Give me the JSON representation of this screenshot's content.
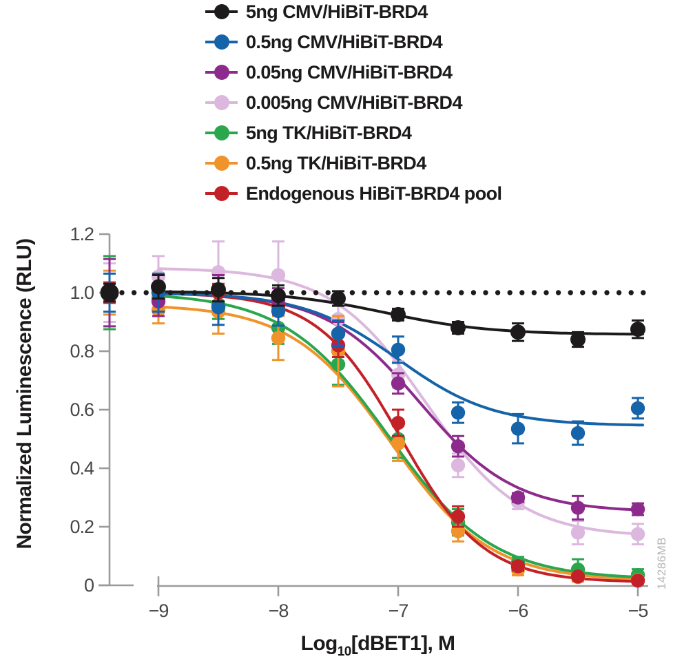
{
  "figure": {
    "watermark": "14286MB",
    "colors": {
      "axis": "#9b9b9b",
      "tick_label": "#474747",
      "reference_line": "#1c1a1b",
      "background": "#ffffff"
    }
  },
  "chart_data": {
    "type": "scatter",
    "title": "",
    "xlabel": "Log10[dBET1], M",
    "xlabel_parts": {
      "prefix": "Log",
      "sub": "10",
      "suffix": "[dBET1], M"
    },
    "ylabel": "Normalized Luminescence (RLU)",
    "legend_position": "top",
    "grid": false,
    "xlim": [
      -9,
      -5
    ],
    "ylim": [
      0,
      1.2
    ],
    "x_ticks": [
      -9,
      -8,
      -7,
      -6,
      -5
    ],
    "x_tick_labels": [
      "−9",
      "−8",
      "−7",
      "−6",
      "−5"
    ],
    "y_ticks": [
      0,
      0.2,
      0.4,
      0.6,
      0.8,
      1.0,
      1.2
    ],
    "y_tick_labels": [
      "0",
      "0.2",
      "0.4",
      "0.6",
      "0.8",
      "1.0",
      "1.2"
    ],
    "reference_line_y": 1.0,
    "x": [
      -9,
      -8.5,
      -8,
      -7.5,
      -7,
      -6.5,
      -6,
      -5.5,
      -5
    ],
    "series": [
      {
        "name": "5ng CMV/HiBiT-BRD4",
        "color": "#1c1a1b",
        "values": [
          1.02,
          1.01,
          0.99,
          0.98,
          0.925,
          0.88,
          0.865,
          0.84,
          0.875
        ],
        "errors": [
          0.04,
          0.04,
          0.035,
          0.025,
          0.02,
          0.02,
          0.03,
          0.025,
          0.03
        ],
        "control": {
          "value": 1.0,
          "error": 0.03
        },
        "fit": {
          "top": 1.005,
          "bottom": 0.857,
          "logIC50": -7.1,
          "hill": 1.0
        }
      },
      {
        "name": "0.5ng CMV/HiBiT-BRD4",
        "color": "#1563a9",
        "values": [
          1.0,
          0.95,
          0.937,
          0.86,
          0.805,
          0.59,
          0.535,
          0.52,
          0.605
        ],
        "errors": [
          0.065,
          0.06,
          0.05,
          0.045,
          0.045,
          0.035,
          0.05,
          0.04,
          0.035
        ],
        "control": {
          "value": 1.0,
          "error": 0.065
        },
        "fit": {
          "top": 1.0,
          "bottom": 0.545,
          "logIC50": -7.0,
          "hill": 1.1
        }
      },
      {
        "name": "0.05ng CMV/HiBiT-BRD4",
        "color": "#8c2b8c",
        "values": [
          0.97,
          1.01,
          0.975,
          0.86,
          0.69,
          0.475,
          0.3,
          0.265,
          0.26
        ],
        "errors": [
          0.05,
          0.05,
          0.04,
          0.04,
          0.035,
          0.035,
          0.015,
          0.04,
          0.02
        ],
        "control": {
          "value": 1.0,
          "error": 0.115
        },
        "fit": {
          "top": 1.0,
          "bottom": 0.25,
          "logIC50": -6.82,
          "hill": 1.1
        }
      },
      {
        "name": "0.005ng CMV/HiBiT-BRD4",
        "color": "#dcb8de",
        "values": [
          1.055,
          1.07,
          1.06,
          0.91,
          0.72,
          0.41,
          0.285,
          0.18,
          0.175
        ],
        "errors": [
          0.07,
          0.105,
          0.115,
          0.05,
          0.045,
          0.04,
          0.025,
          0.04,
          0.035
        ],
        "control": {
          "value": 1.0,
          "error": 0.1
        },
        "fit": {
          "top": 1.085,
          "bottom": 0.165,
          "logIC50": -6.77,
          "hill": 1.1
        }
      },
      {
        "name": "5ng TK/HiBiT-BRD4",
        "color": "#2aa64d",
        "values": [
          0.98,
          0.96,
          0.88,
          0.755,
          0.5,
          0.215,
          0.077,
          0.054,
          0.035
        ],
        "errors": [
          0.04,
          0.05,
          0.055,
          0.07,
          0.065,
          0.045,
          0.02,
          0.035,
          0.02
        ],
        "control": {
          "value": 1.0,
          "error": 0.125
        },
        "fit": {
          "top": 1.0,
          "bottom": 0.02,
          "logIC50": -7.08,
          "hill": 1.0
        }
      },
      {
        "name": "0.5ng TK/HiBiT-BRD4",
        "color": "#f0932a",
        "values": [
          0.94,
          0.935,
          0.845,
          0.8,
          0.485,
          0.185,
          0.054,
          0.028,
          0.018
        ],
        "errors": [
          0.045,
          0.075,
          0.075,
          0.12,
          0.06,
          0.035,
          0.02,
          0.015,
          0.012
        ],
        "control": {
          "value": 1.0,
          "error": 0.075
        },
        "fit": {
          "top": 0.96,
          "bottom": 0.015,
          "logIC50": -7.06,
          "hill": 1.05
        }
      },
      {
        "name": "Endogenous HiBiT-BRD4 pool",
        "color": "#c32128",
        "values": [
          1.0,
          1.0,
          0.955,
          0.82,
          0.555,
          0.235,
          0.065,
          0.03,
          0.016
        ],
        "errors": [
          0.03,
          0.03,
          0.03,
          0.04,
          0.045,
          0.035,
          0.015,
          0.01,
          0.01
        ],
        "control": {
          "value": 1.0,
          "error": 0.035
        },
        "fit": {
          "top": 1.0,
          "bottom": 0.01,
          "logIC50": -6.98,
          "hill": 1.25
        }
      }
    ]
  }
}
